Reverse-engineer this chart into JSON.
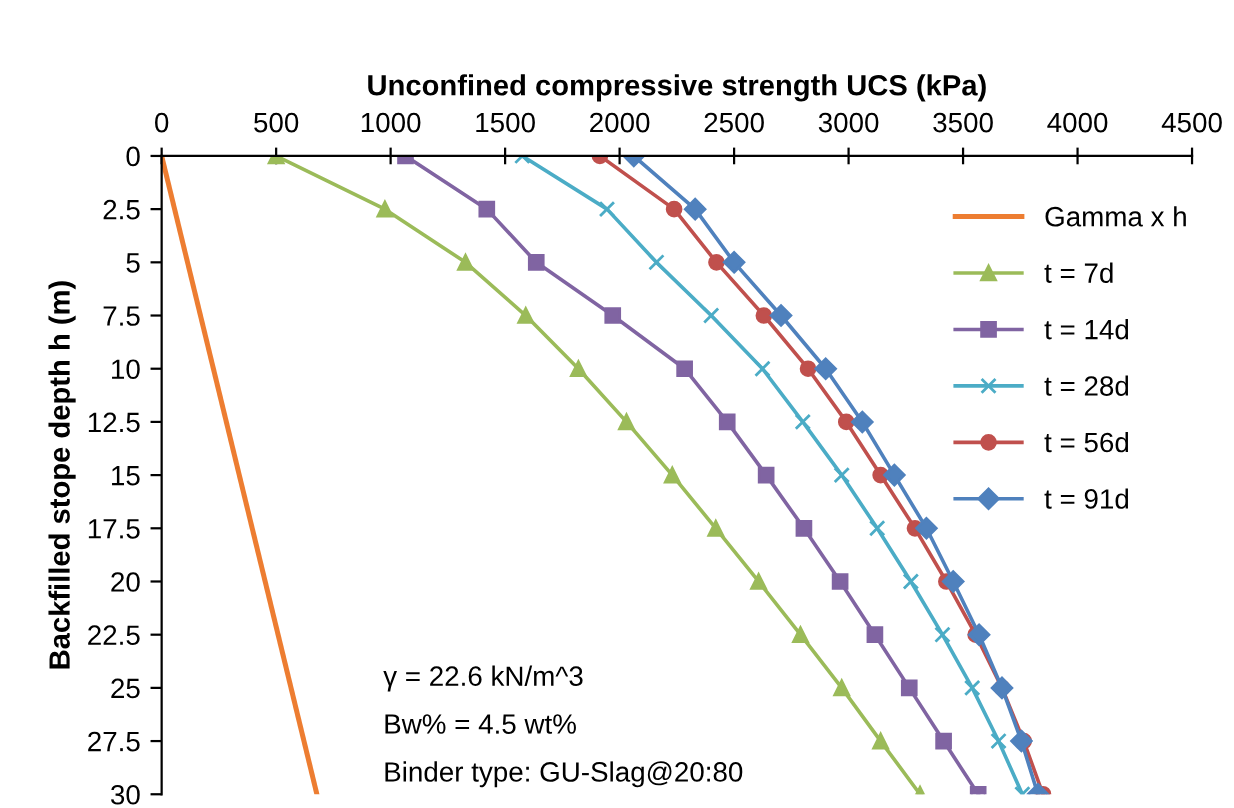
{
  "chart_data": {
    "type": "line",
    "xlabel": "Unconfined compressive strength UCS (kPa)",
    "ylabel": "Backfilled stope depth h (m)",
    "xlim": [
      0,
      4500
    ],
    "xticks": [
      0,
      500,
      1000,
      1500,
      2000,
      2500,
      3000,
      3500,
      4000,
      4500
    ],
    "ylim": [
      30,
      0
    ],
    "yticks": [
      0,
      2.5,
      5,
      7.5,
      10,
      12.5,
      15,
      17.5,
      20,
      22.5,
      25,
      27.5,
      30
    ],
    "grid": false,
    "legend": "right",
    "series": [
      {
        "name": "Gamma x h",
        "color": "#ed7d31",
        "marker": "none",
        "x": [
          0,
          678
        ],
        "values": [
          0,
          30
        ]
      },
      {
        "name": "t = 7d",
        "color": "#9bbb59",
        "marker": "triangle",
        "x": [
          500,
          975,
          1327,
          1590,
          1820,
          2030,
          2230,
          2420,
          2607,
          2790,
          2970,
          3140,
          3312
        ],
        "values": [
          0,
          2.5,
          5,
          7.5,
          10,
          12.5,
          15,
          17.5,
          20,
          22.5,
          25,
          27.5,
          30
        ]
      },
      {
        "name": "t = 14d",
        "color": "#8064a2",
        "marker": "square",
        "x": [
          1065,
          1420,
          1636,
          1970,
          2284,
          2470,
          2640,
          2805,
          2963,
          3115,
          3265,
          3415,
          3566
        ],
        "values": [
          0,
          2.5,
          5,
          7.5,
          10,
          12.5,
          15,
          17.5,
          20,
          22.5,
          25,
          27.5,
          30
        ]
      },
      {
        "name": "t = 28d",
        "color": "#4bacc6",
        "marker": "cross",
        "x": [
          1575,
          1945,
          2161,
          2400,
          2624,
          2800,
          2970,
          3125,
          3272,
          3410,
          3540,
          3655,
          3759
        ],
        "values": [
          0,
          2.5,
          5,
          7.5,
          10,
          12.5,
          15,
          17.5,
          20,
          22.5,
          25,
          27.5,
          30
        ]
      },
      {
        "name": "t = 56d",
        "color": "#c0504d",
        "marker": "circle",
        "x": [
          1914,
          2238,
          2423,
          2630,
          2823,
          2990,
          3140,
          3290,
          3427,
          3555,
          3670,
          3765,
          3849
        ],
        "values": [
          0,
          2.5,
          5,
          7.5,
          10,
          12.5,
          15,
          17.5,
          20,
          22.5,
          25,
          27.5,
          30
        ]
      },
      {
        "name": "t = 91d",
        "color": "#4f81bd",
        "marker": "diamond",
        "x": [
          2062,
          2330,
          2500,
          2705,
          2900,
          3060,
          3200,
          3340,
          3457,
          3570,
          3670,
          3755,
          3827
        ],
        "values": [
          0,
          2.5,
          5,
          7.5,
          10,
          12.5,
          15,
          17.5,
          20,
          22.5,
          25,
          27.5,
          30
        ]
      }
    ],
    "annotations": [
      "γ = 22.6 kN/m^3",
      "Bw% = 4.5 wt%",
      "Binder type: GU-Slag@20:80"
    ]
  }
}
